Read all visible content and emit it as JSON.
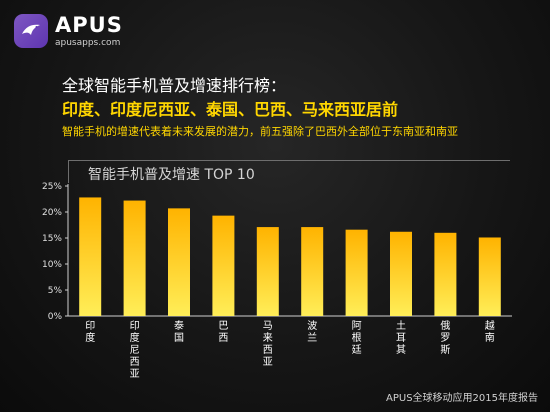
{
  "logo": {
    "brand": "APUS",
    "site": "apusapps.com",
    "icon": "apus-bird-icon"
  },
  "header": {
    "headline": "全球智能手机普及增速排行榜：",
    "highlight": "印度、印度尼西亚、泰国、巴西、马来西亚居前",
    "subtext": "智能手机的增速代表着未来发展的潜力，前五强除了巴西外全部位于东南亚和南亚"
  },
  "chart_data": {
    "type": "bar",
    "title": "智能手机普及增速 TOP 10",
    "categories": [
      "印度",
      "印度尼西亚",
      "泰国",
      "巴西",
      "马来西亚",
      "波兰",
      "阿根廷",
      "土耳其",
      "俄罗斯",
      "越南"
    ],
    "values": [
      22.8,
      22.2,
      20.7,
      19.3,
      17.1,
      17.1,
      16.6,
      16.2,
      16.0,
      15.1
    ],
    "yticks": [
      "0%",
      "5%",
      "10%",
      "15%",
      "20%",
      "25%"
    ],
    "ylim": [
      0,
      25
    ],
    "grid": false,
    "legend": "none",
    "colors": {
      "bar_top": "#ffb300",
      "bar_bottom": "#ffee58",
      "axis": "#cfcfcf"
    }
  },
  "footer": {
    "source": "APUS全球移动应用2015年度报告"
  }
}
